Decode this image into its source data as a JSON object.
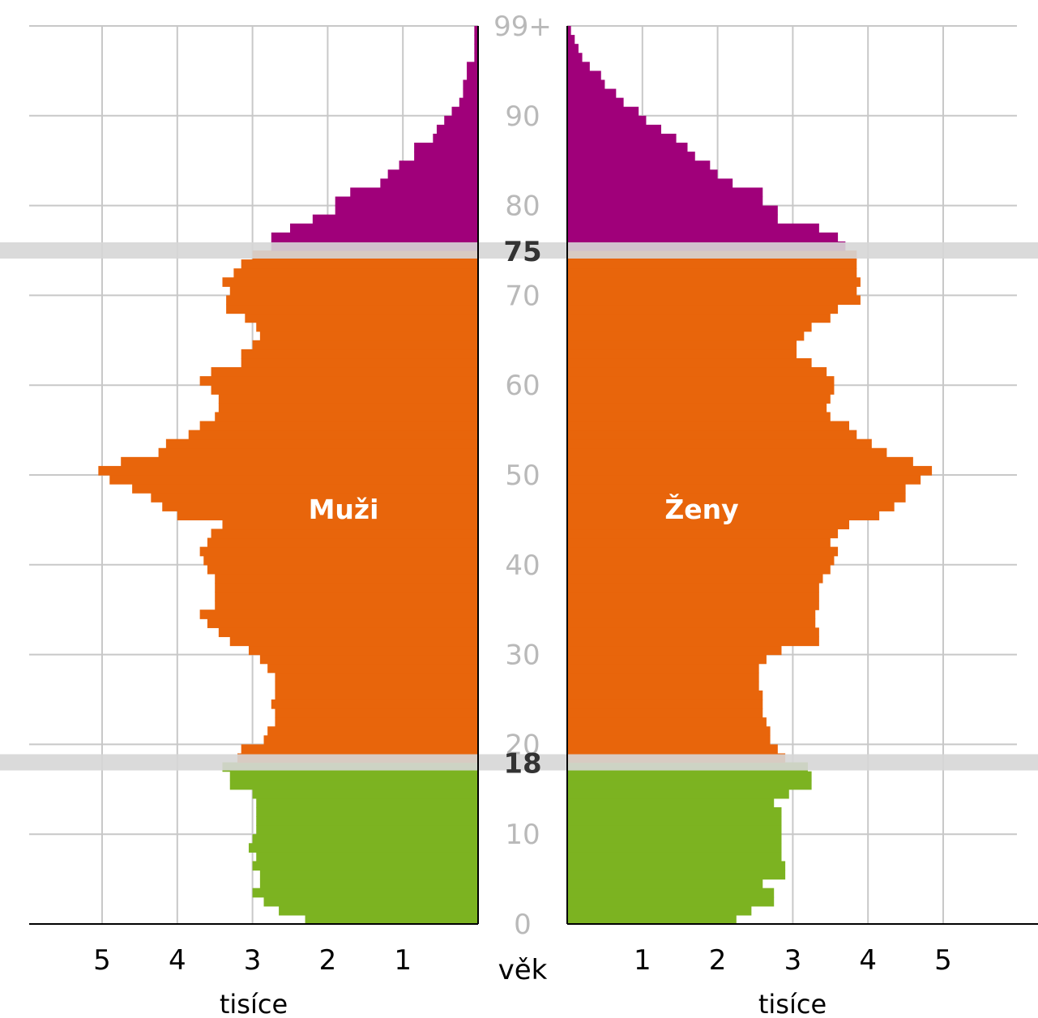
{
  "chart_data": {
    "type": "bar",
    "orientation": "horizontal-pyramid",
    "y_axis_label": "věk",
    "x_axis_unit": "tisíce",
    "x_ticks": [
      1,
      2,
      3,
      4,
      5
    ],
    "xlim": [
      0,
      5.5
    ],
    "ylim": [
      0,
      99
    ],
    "age_tick_labels": [
      {
        "age": 0,
        "label": "0"
      },
      {
        "age": 10,
        "label": "10"
      },
      {
        "age": 20,
        "label": "20"
      },
      {
        "age": 30,
        "label": "30"
      },
      {
        "age": 40,
        "label": "40"
      },
      {
        "age": 50,
        "label": "50"
      },
      {
        "age": 60,
        "label": "60"
      },
      {
        "age": 70,
        "label": "70"
      },
      {
        "age": 80,
        "label": "80"
      },
      {
        "age": 90,
        "label": "90"
      },
      {
        "age": 99,
        "label": "99+"
      }
    ],
    "age_markers": [
      {
        "age": 18,
        "label": "18"
      },
      {
        "age": 75,
        "label": "75"
      }
    ],
    "age_groups": [
      {
        "from": 0,
        "to": 17,
        "color": "#7cb321"
      },
      {
        "from": 18,
        "to": 74,
        "color": "#e8650b"
      },
      {
        "from": 75,
        "to": 99,
        "color": "#a0007a"
      }
    ],
    "grid": true,
    "marker_band_color": "#d6d6d6",
    "ages": [
      0,
      1,
      2,
      3,
      4,
      5,
      6,
      7,
      8,
      9,
      10,
      11,
      12,
      13,
      14,
      15,
      16,
      17,
      18,
      19,
      20,
      21,
      22,
      23,
      24,
      25,
      26,
      27,
      28,
      29,
      30,
      31,
      32,
      33,
      34,
      35,
      36,
      37,
      38,
      39,
      40,
      41,
      42,
      43,
      44,
      45,
      46,
      47,
      48,
      49,
      50,
      51,
      52,
      53,
      54,
      55,
      56,
      57,
      58,
      59,
      60,
      61,
      62,
      63,
      64,
      65,
      66,
      67,
      68,
      69,
      70,
      71,
      72,
      73,
      74,
      75,
      76,
      77,
      78,
      79,
      80,
      81,
      82,
      83,
      84,
      85,
      86,
      87,
      88,
      89,
      90,
      91,
      92,
      93,
      94,
      95,
      96,
      97,
      98,
      99
    ],
    "series": [
      {
        "name": "Muži",
        "values": [
          2.3,
          2.65,
          2.85,
          3.0,
          2.9,
          2.9,
          3.0,
          2.95,
          3.05,
          3.0,
          2.95,
          2.95,
          2.95,
          2.95,
          3.0,
          3.3,
          3.3,
          3.4,
          3.2,
          3.15,
          2.85,
          2.8,
          2.7,
          2.7,
          2.75,
          2.7,
          2.7,
          2.7,
          2.8,
          2.9,
          3.05,
          3.3,
          3.45,
          3.6,
          3.7,
          3.5,
          3.5,
          3.5,
          3.5,
          3.6,
          3.65,
          3.7,
          3.6,
          3.55,
          3.4,
          4.0,
          4.2,
          4.35,
          4.6,
          4.9,
          5.05,
          4.75,
          4.25,
          4.15,
          3.85,
          3.7,
          3.5,
          3.45,
          3.45,
          3.55,
          3.7,
          3.55,
          3.15,
          3.15,
          3.0,
          2.9,
          2.95,
          3.1,
          3.35,
          3.35,
          3.3,
          3.4,
          3.25,
          3.15,
          3.0,
          2.75,
          2.75,
          2.5,
          2.2,
          1.9,
          1.9,
          1.7,
          1.3,
          1.2,
          1.05,
          0.85,
          0.85,
          0.6,
          0.55,
          0.45,
          0.35,
          0.25,
          0.2,
          0.2,
          0.15,
          0.15,
          0.05,
          0.05,
          0.05,
          0.05
        ]
      },
      {
        "name": "Ženy",
        "values": [
          2.25,
          2.45,
          2.75,
          2.75,
          2.6,
          2.9,
          2.9,
          2.85,
          2.85,
          2.85,
          2.85,
          2.85,
          2.85,
          2.75,
          2.95,
          3.25,
          3.25,
          3.2,
          2.9,
          2.8,
          2.7,
          2.7,
          2.65,
          2.6,
          2.6,
          2.6,
          2.55,
          2.55,
          2.55,
          2.65,
          2.85,
          3.35,
          3.35,
          3.3,
          3.3,
          3.35,
          3.35,
          3.35,
          3.4,
          3.5,
          3.55,
          3.6,
          3.5,
          3.6,
          3.75,
          4.15,
          4.35,
          4.5,
          4.5,
          4.7,
          4.85,
          4.6,
          4.25,
          4.05,
          3.85,
          3.75,
          3.5,
          3.45,
          3.5,
          3.55,
          3.55,
          3.45,
          3.25,
          3.05,
          3.05,
          3.15,
          3.25,
          3.5,
          3.6,
          3.9,
          3.85,
          3.9,
          3.85,
          3.85,
          3.85,
          3.7,
          3.6,
          3.35,
          2.8,
          2.8,
          2.6,
          2.6,
          2.2,
          2.0,
          1.9,
          1.7,
          1.6,
          1.45,
          1.25,
          1.05,
          0.95,
          0.75,
          0.65,
          0.5,
          0.45,
          0.3,
          0.2,
          0.15,
          0.1,
          0.05
        ]
      }
    ]
  }
}
